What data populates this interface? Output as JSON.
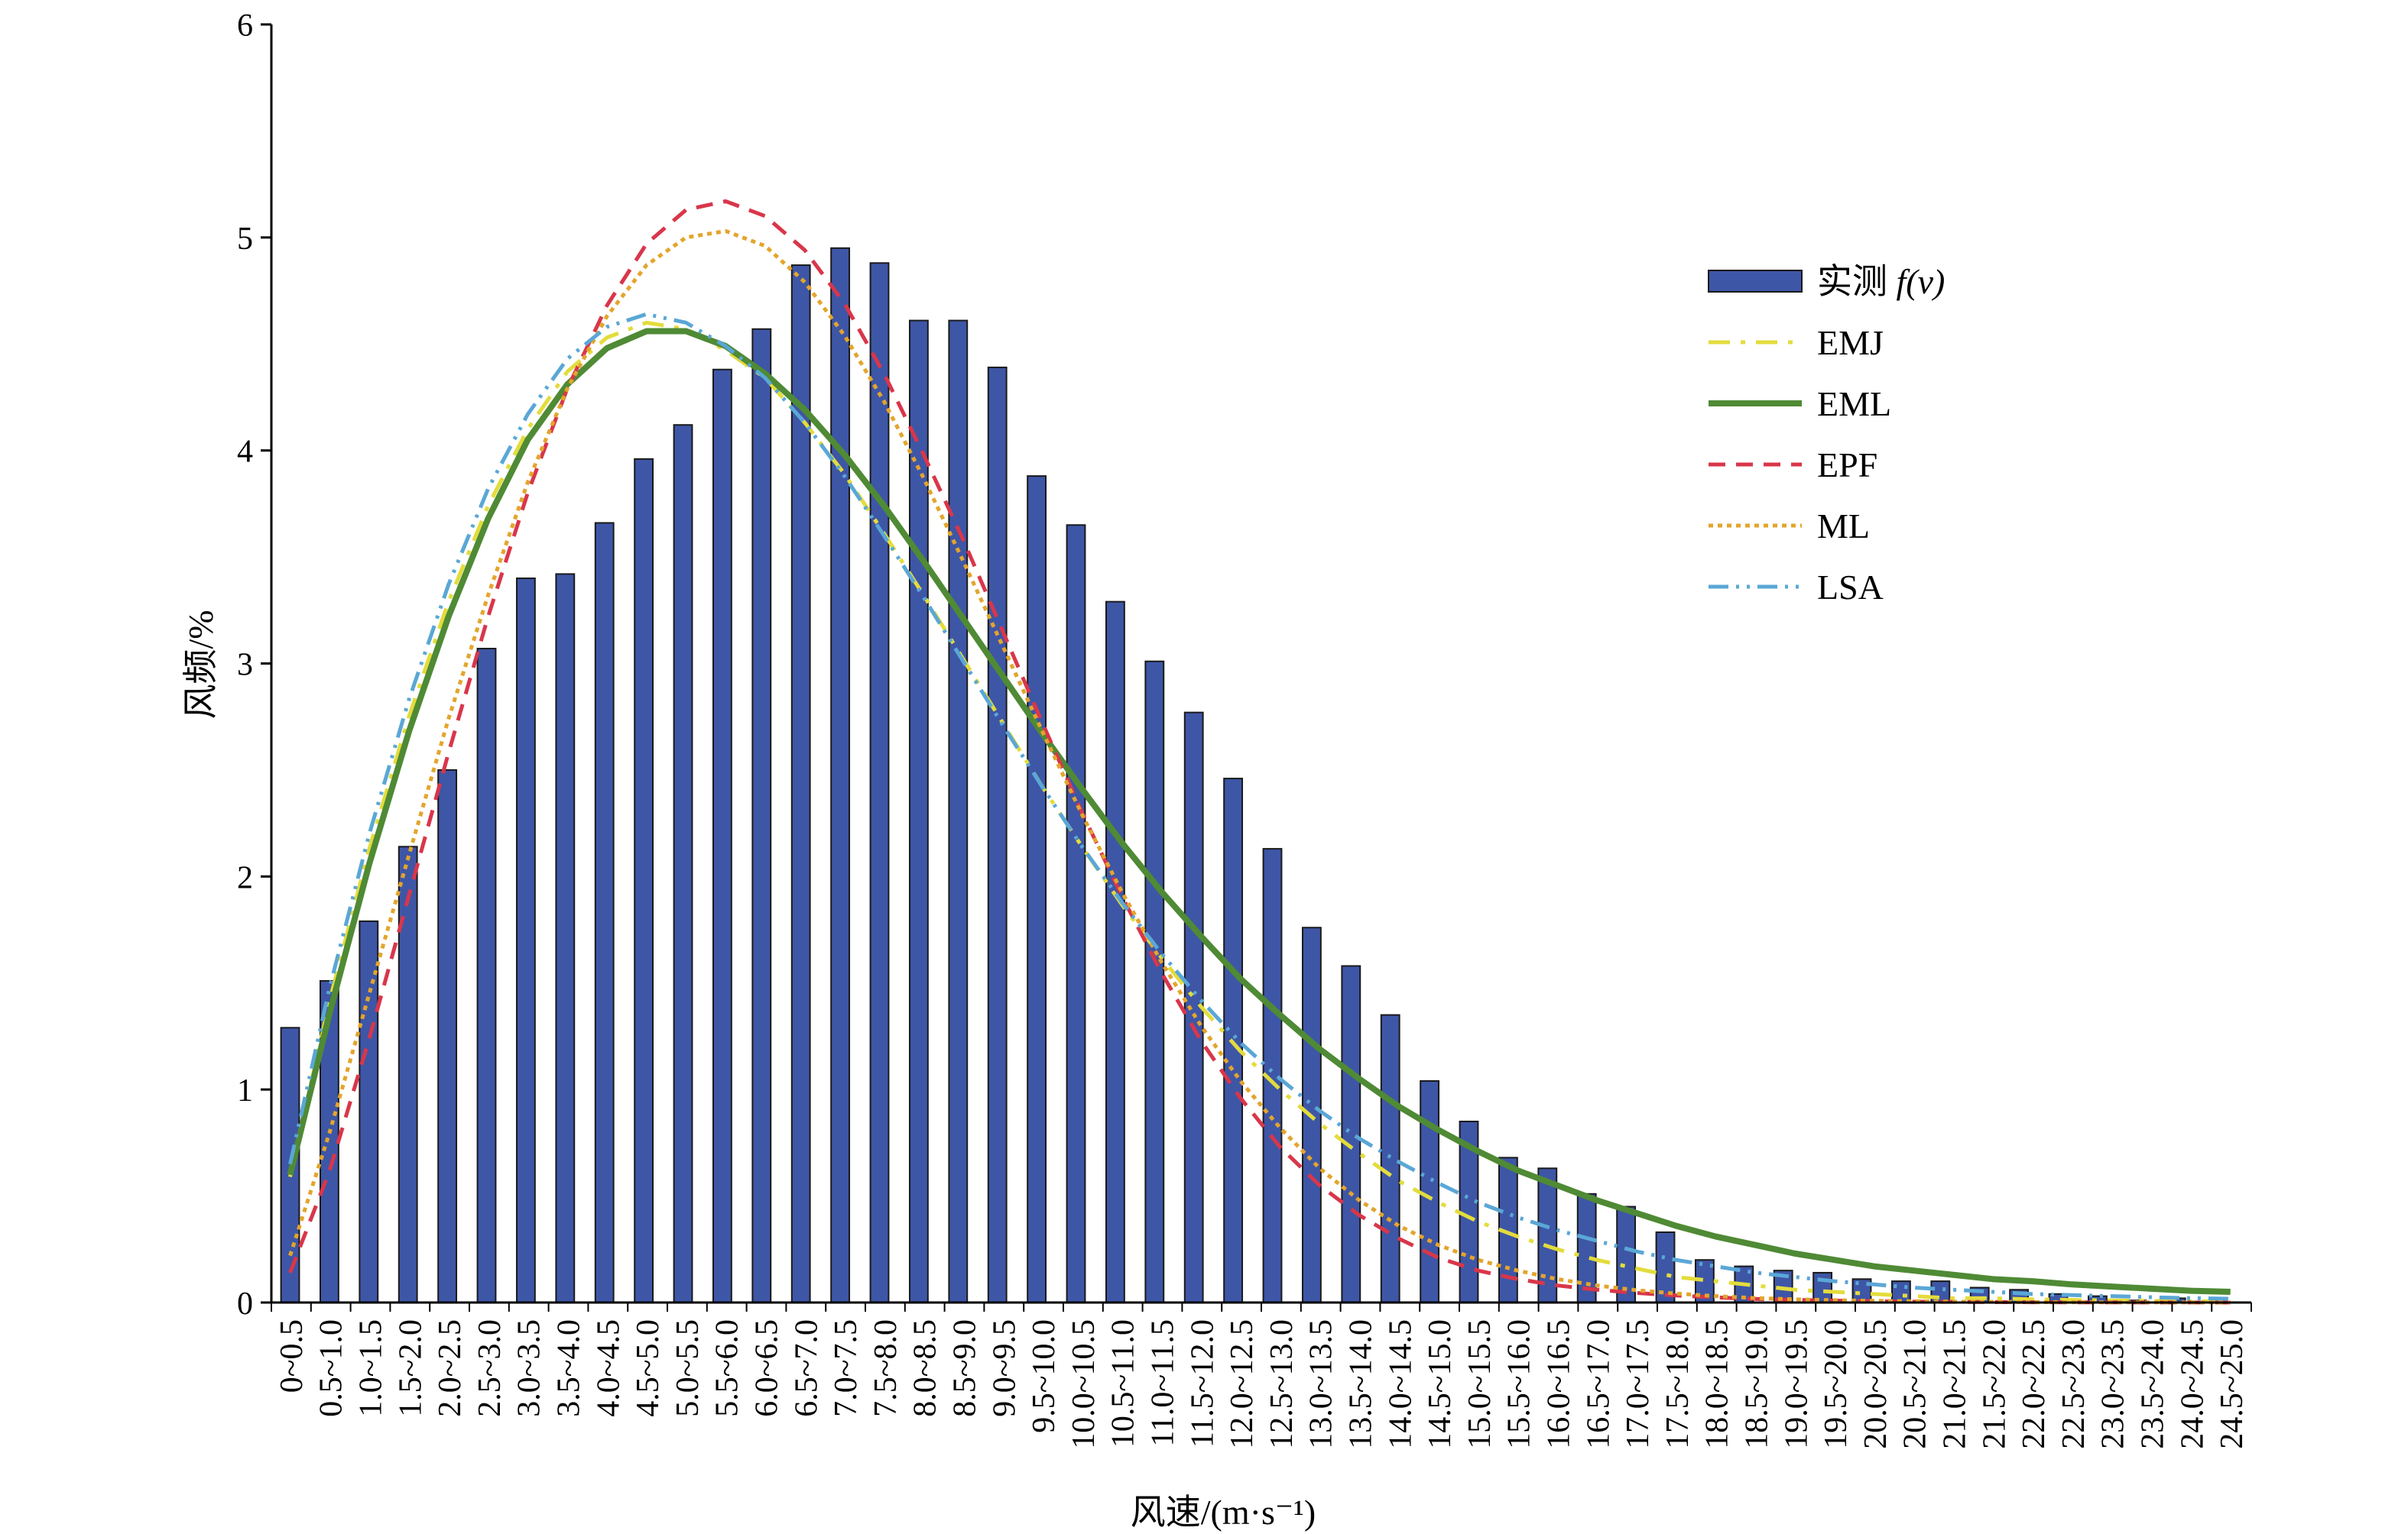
{
  "chart_data": {
    "type": "bar",
    "xlabel": "风速/(m·s⁻¹)",
    "ylabel": "风频/%",
    "ylim": [
      0,
      6
    ],
    "yticks": [
      0,
      1,
      2,
      3,
      4,
      5,
      6
    ],
    "grid": false,
    "legend_position": "top-right",
    "categories": [
      "0~0.5",
      "0.5~1.0",
      "1.0~1.5",
      "1.5~2.0",
      "2.0~2.5",
      "2.5~3.0",
      "3.0~3.5",
      "3.5~4.0",
      "4.0~4.5",
      "4.5~5.0",
      "5.0~5.5",
      "5.5~6.0",
      "6.0~6.5",
      "6.5~7.0",
      "7.0~7.5",
      "7.5~8.0",
      "8.0~8.5",
      "8.5~9.0",
      "9.0~9.5",
      "9.5~10.0",
      "10.0~10.5",
      "10.5~11.0",
      "11.0~11.5",
      "11.5~12.0",
      "12.0~12.5",
      "12.5~13.0",
      "13.0~13.5",
      "13.5~14.0",
      "14.0~14.5",
      "14.5~15.0",
      "15.0~15.5",
      "15.5~16.0",
      "16.0~16.5",
      "16.5~17.0",
      "17.0~17.5",
      "17.5~18.0",
      "18.0~18.5",
      "18.5~19.0",
      "19.0~19.5",
      "19.5~20.0",
      "20.0~20.5",
      "20.5~21.0",
      "21.0~21.5",
      "21.5~22.0",
      "22.0~22.5",
      "22.5~23.0",
      "23.0~23.5",
      "23.5~24.0",
      "24.0~24.5",
      "24.5~25.0"
    ],
    "bars": {
      "name": "实测 f(v)",
      "legend_prefix": "实测 ",
      "legend_italic": "f(v)",
      "color": "#3e56a6",
      "values": [
        1.29,
        1.51,
        1.79,
        2.14,
        2.5,
        3.07,
        3.4,
        3.42,
        3.66,
        3.96,
        4.12,
        4.38,
        4.57,
        4.87,
        4.95,
        4.88,
        4.61,
        4.61,
        4.39,
        3.88,
        3.65,
        3.29,
        3.01,
        2.77,
        2.46,
        2.13,
        1.76,
        1.58,
        1.35,
        1.04,
        0.85,
        0.68,
        0.63,
        0.51,
        0.45,
        0.33,
        0.2,
        0.17,
        0.15,
        0.14,
        0.11,
        0.1,
        0.1,
        0.07,
        0.06,
        0.04,
        0.03,
        0.01,
        0.02,
        0.01
      ]
    },
    "curves_x": [
      0.25,
      0.75,
      1.25,
      1.75,
      2.25,
      2.75,
      3.25,
      3.75,
      4.25,
      4.75,
      5.25,
      5.75,
      6.25,
      6.75,
      7.25,
      7.75,
      8.25,
      8.75,
      9.25,
      9.75,
      10.25,
      10.75,
      11.25,
      11.75,
      12.25,
      12.75,
      13.25,
      13.75,
      14.25,
      14.75,
      15.25,
      15.75,
      16.25,
      16.75,
      17.25,
      17.75,
      18.25,
      18.75,
      19.25,
      19.75,
      20.25,
      20.75,
      21.25,
      21.75,
      22.25,
      22.75,
      23.25,
      23.75,
      24.25,
      24.75
    ],
    "series": [
      {
        "name": "EMJ",
        "color": "#e3dc3c",
        "dash": "28 14 6 14",
        "width": 5,
        "values": [
          0.59,
          1.42,
          2.13,
          2.75,
          3.29,
          3.74,
          4.1,
          4.37,
          4.53,
          4.6,
          4.57,
          4.47,
          4.34,
          4.13,
          3.89,
          3.61,
          3.32,
          3.02,
          2.72,
          2.42,
          2.14,
          1.87,
          1.62,
          1.39,
          1.18,
          1.0,
          0.84,
          0.7,
          0.57,
          0.47,
          0.38,
          0.31,
          0.25,
          0.2,
          0.16,
          0.12,
          0.1,
          0.08,
          0.06,
          0.05,
          0.04,
          0.03,
          0.02,
          0.02,
          0.015,
          0.012,
          0.01,
          0.008,
          0.006,
          0.005
        ]
      },
      {
        "name": "EML",
        "color": "#4f8a35",
        "dash": "",
        "width": 8,
        "values": [
          0.6,
          1.36,
          2.06,
          2.68,
          3.22,
          3.68,
          4.05,
          4.31,
          4.48,
          4.56,
          4.56,
          4.49,
          4.36,
          4.19,
          3.98,
          3.74,
          3.48,
          3.21,
          2.94,
          2.67,
          2.41,
          2.16,
          1.93,
          1.72,
          1.52,
          1.35,
          1.19,
          1.05,
          0.92,
          0.81,
          0.71,
          0.62,
          0.55,
          0.48,
          0.42,
          0.36,
          0.31,
          0.27,
          0.23,
          0.2,
          0.17,
          0.15,
          0.13,
          0.11,
          0.1,
          0.085,
          0.075,
          0.065,
          0.055,
          0.05
        ]
      },
      {
        "name": "EPF",
        "color": "#d9364a",
        "dash": "22 14",
        "width": 5,
        "values": [
          0.14,
          0.62,
          1.24,
          1.91,
          2.58,
          3.22,
          3.8,
          4.29,
          4.68,
          4.97,
          5.13,
          5.17,
          5.1,
          4.94,
          4.69,
          4.36,
          3.98,
          3.58,
          3.15,
          2.72,
          2.3,
          1.91,
          1.55,
          1.23,
          0.96,
          0.73,
          0.55,
          0.41,
          0.3,
          0.21,
          0.15,
          0.11,
          0.08,
          0.06,
          0.045,
          0.033,
          0.024,
          0.017,
          0.012,
          0.009,
          0.006,
          0.004,
          0.003,
          0.002,
          0.0015,
          0.001,
          0.0008,
          0.0005,
          0.0003,
          0.0002
        ]
      },
      {
        "name": "ML",
        "color": "#e3a52c",
        "dash": "6 6",
        "width": 5,
        "values": [
          0.22,
          0.8,
          1.45,
          2.1,
          2.74,
          3.32,
          3.85,
          4.29,
          4.63,
          4.87,
          5.0,
          5.03,
          4.96,
          4.79,
          4.54,
          4.23,
          3.87,
          3.48,
          3.08,
          2.68,
          2.29,
          1.93,
          1.6,
          1.3,
          1.04,
          0.82,
          0.63,
          0.48,
          0.36,
          0.27,
          0.2,
          0.15,
          0.11,
          0.08,
          0.058,
          0.042,
          0.03,
          0.021,
          0.015,
          0.011,
          0.008,
          0.006,
          0.004,
          0.003,
          0.002,
          0.0015,
          0.001,
          0.0008,
          0.0005,
          0.0004
        ]
      },
      {
        "name": "LSA",
        "color": "#5aa7d6",
        "dash": "26 10 4 10 4 10",
        "width": 5,
        "values": [
          0.65,
          1.48,
          2.2,
          2.83,
          3.37,
          3.82,
          4.17,
          4.43,
          4.58,
          4.64,
          4.6,
          4.49,
          4.34,
          4.13,
          3.88,
          3.6,
          3.31,
          3.01,
          2.71,
          2.42,
          2.14,
          1.88,
          1.64,
          1.42,
          1.22,
          1.05,
          0.9,
          0.77,
          0.66,
          0.56,
          0.47,
          0.4,
          0.34,
          0.29,
          0.24,
          0.2,
          0.17,
          0.14,
          0.12,
          0.1,
          0.085,
          0.07,
          0.06,
          0.05,
          0.04,
          0.035,
          0.03,
          0.025,
          0.02,
          0.018
        ]
      }
    ]
  }
}
